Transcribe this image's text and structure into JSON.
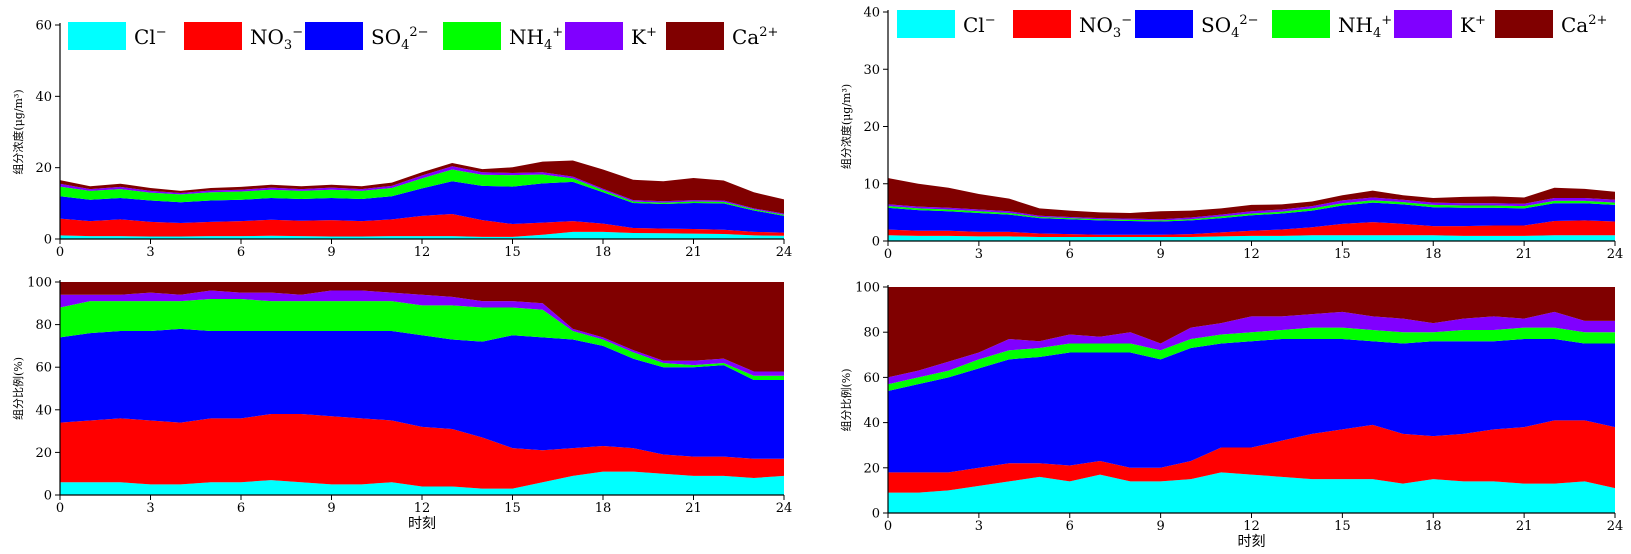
{
  "legend_items": [
    {
      "label": "Cl",
      "sup": "−",
      "sub": "",
      "color": "#00ffff"
    },
    {
      "label": "NO",
      "sub": "3",
      "sup": "−",
      "color": "#ff0000"
    },
    {
      "label": "SO",
      "sub": "4",
      "sup": "2−",
      "color": "#0000ff"
    },
    {
      "label": "NH",
      "sub": "4",
      "sup": "+",
      "color": "#00ff00"
    },
    {
      "label": "K",
      "sub": "",
      "sup": "+",
      "color": "#8000ff"
    },
    {
      "label": "Ca",
      "sub": "",
      "sup": "2+",
      "color": "#800000"
    }
  ],
  "colors": {
    "Cl": "#00ffff",
    "NO3": "#ff0000",
    "SO4": "#0000ff",
    "NH4": "#00ff00",
    "K": "#8000ff",
    "Ca": "#800000"
  },
  "chart_data": [
    {
      "id": "left-concentration",
      "type": "area",
      "stacked": true,
      "ylabel": "组分浓度(μg/m³)",
      "xlabel": "",
      "xlim": [
        0,
        24
      ],
      "ylim": [
        0,
        60
      ],
      "xticks": [
        0,
        3,
        6,
        9,
        12,
        15,
        18,
        21,
        24
      ],
      "yticks": [
        0,
        20,
        40,
        60
      ],
      "legend": "top",
      "x": [
        0,
        1,
        2,
        3,
        4,
        5,
        6,
        7,
        8,
        9,
        10,
        11,
        12,
        13,
        14,
        15,
        16,
        17,
        18,
        19,
        20,
        21,
        22,
        23,
        24
      ],
      "series": [
        {
          "name": "Cl⁻",
          "color": "#00ffff",
          "values": [
            1,
            0.8,
            0.8,
            0.7,
            0.7,
            0.8,
            0.8,
            0.9,
            0.8,
            0.7,
            0.7,
            0.8,
            0.8,
            0.8,
            0.6,
            0.6,
            1.2,
            2.0,
            2.0,
            1.7,
            1.6,
            1.5,
            1.4,
            1.0,
            0.9
          ]
        },
        {
          "name": "NO₃⁻",
          "color": "#ff0000",
          "values": [
            4.7,
            4.2,
            4.7,
            4.1,
            3.8,
            4.0,
            4.2,
            4.5,
            4.3,
            4.6,
            4.3,
            4.7,
            5.7,
            6.2,
            4.7,
            3.6,
            3.4,
            3.0,
            2.3,
            1.4,
            1.3,
            1.3,
            1.2,
            1.0,
            0.9
          ]
        },
        {
          "name": "SO₄²⁻",
          "color": "#0000ff",
          "values": [
            6.3,
            6.0,
            6.0,
            6.0,
            5.8,
            6.0,
            6.0,
            6.1,
            6.1,
            6.2,
            6.2,
            6.5,
            7.7,
            9.2,
            9.6,
            10.5,
            11.0,
            11.0,
            8.8,
            7.0,
            6.9,
            7.3,
            7.4,
            6.0,
            4.7
          ]
        },
        {
          "name": "NH₄⁺",
          "color": "#00ff00",
          "values": [
            2.7,
            2.5,
            2.5,
            2.2,
            2.2,
            2.3,
            2.3,
            2.3,
            2.3,
            2.3,
            2.3,
            2.3,
            2.8,
            3.3,
            3.1,
            3.2,
            2.5,
            1.0,
            0.6,
            0.4,
            0.4,
            0.4,
            0.4,
            0.3,
            0.3
          ]
        },
        {
          "name": "K⁺",
          "color": "#8000ff",
          "values": [
            0.8,
            0.5,
            0.6,
            0.5,
            0.4,
            0.5,
            0.5,
            0.6,
            0.5,
            0.6,
            0.5,
            0.6,
            0.8,
            0.9,
            0.7,
            0.6,
            0.6,
            0.5,
            0.4,
            0.4,
            0.4,
            0.4,
            0.4,
            0.3,
            0.3
          ]
        },
        {
          "name": "Ca²⁺",
          "color": "#800000",
          "values": [
            1.0,
            0.8,
            0.9,
            0.8,
            0.6,
            0.7,
            0.8,
            0.8,
            0.8,
            0.8,
            0.8,
            0.9,
            0.9,
            0.9,
            0.9,
            1.6,
            3.0,
            4.5,
            5.4,
            5.7,
            5.6,
            6.2,
            5.6,
            4.5,
            4.0
          ]
        }
      ]
    },
    {
      "id": "left-proportion",
      "type": "area",
      "stacked": true,
      "ylabel": "组分比例(%)",
      "xlabel": "时刻",
      "xlim": [
        0,
        24
      ],
      "ylim": [
        0,
        100
      ],
      "xticks": [
        0,
        3,
        6,
        9,
        12,
        15,
        18,
        21,
        24
      ],
      "yticks": [
        0,
        20,
        40,
        60,
        80,
        100
      ],
      "x": [
        0,
        1,
        2,
        3,
        4,
        5,
        6,
        7,
        8,
        9,
        10,
        11,
        12,
        13,
        14,
        15,
        16,
        17,
        18,
        19,
        20,
        21,
        22,
        23,
        24
      ],
      "series": [
        {
          "name": "Cl⁻",
          "color": "#00ffff",
          "values": [
            6,
            6,
            6,
            5,
            5,
            6,
            6,
            7,
            6,
            5,
            5,
            6,
            4,
            4,
            3,
            3,
            6,
            9,
            11,
            11,
            10,
            9,
            9,
            8,
            9
          ]
        },
        {
          "name": "NO₃⁻",
          "color": "#ff0000",
          "values": [
            28,
            29,
            30,
            30,
            29,
            30,
            30,
            31,
            32,
            32,
            31,
            29,
            28,
            27,
            24,
            19,
            15,
            13,
            12,
            11,
            9,
            9,
            9,
            9,
            8
          ]
        },
        {
          "name": "SO₄²⁻",
          "color": "#0000ff",
          "values": [
            40,
            41,
            41,
            42,
            44,
            41,
            41,
            39,
            39,
            40,
            41,
            42,
            43,
            42,
            45,
            53,
            53,
            51,
            47,
            42,
            41,
            42,
            43,
            37,
            37
          ]
        },
        {
          "name": "NH₄⁺",
          "color": "#00ff00",
          "values": [
            14,
            15,
            14,
            14,
            13,
            15,
            15,
            14,
            14,
            14,
            14,
            14,
            14,
            16,
            16,
            13,
            13,
            4,
            3,
            3,
            2,
            1,
            1,
            2,
            2
          ]
        },
        {
          "name": "K⁺",
          "color": "#8000ff",
          "values": [
            6,
            3,
            3,
            4,
            3,
            4,
            3,
            4,
            3,
            5,
            5,
            4,
            5,
            4,
            3,
            3,
            3,
            1,
            1,
            1,
            1,
            2,
            2,
            2,
            2
          ]
        },
        {
          "name": "Ca²⁺",
          "color": "#800000",
          "values": [
            6,
            6,
            6,
            5,
            6,
            4,
            5,
            5,
            6,
            4,
            4,
            5,
            6,
            7,
            9,
            11,
            10,
            22,
            26,
            32,
            37,
            37,
            36,
            42,
            42
          ]
        }
      ]
    },
    {
      "id": "right-concentration",
      "type": "area",
      "stacked": true,
      "ylabel": "组分浓度(μg/m³)",
      "xlabel": "",
      "xlim": [
        0,
        24
      ],
      "ylim": [
        0,
        40
      ],
      "xticks": [
        0,
        3,
        6,
        9,
        12,
        15,
        18,
        21,
        24
      ],
      "yticks": [
        0,
        10,
        20,
        30,
        40
      ],
      "legend": "top",
      "x": [
        0,
        1,
        2,
        3,
        4,
        5,
        6,
        7,
        8,
        9,
        10,
        11,
        12,
        13,
        14,
        15,
        16,
        17,
        18,
        19,
        20,
        21,
        22,
        23,
        24
      ],
      "series": [
        {
          "name": "Cl⁻",
          "color": "#00ffff",
          "values": [
            1.0,
            0.9,
            0.9,
            0.8,
            0.8,
            0.7,
            0.7,
            0.7,
            0.7,
            0.7,
            0.7,
            0.8,
            0.9,
            0.9,
            1.0,
            1.0,
            1.0,
            1.0,
            1.0,
            0.9,
            0.9,
            0.9,
            1.0,
            1.0,
            1.0
          ]
        },
        {
          "name": "NO₃⁻",
          "color": "#ff0000",
          "values": [
            1.0,
            0.9,
            0.9,
            0.8,
            0.8,
            0.6,
            0.5,
            0.4,
            0.4,
            0.4,
            0.5,
            0.7,
            0.9,
            1.1,
            1.4,
            2.0,
            2.3,
            2.0,
            1.6,
            1.7,
            1.8,
            1.8,
            2.5,
            2.6,
            2.4
          ]
        },
        {
          "name": "SO₄²⁻",
          "color": "#0000ff",
          "values": [
            3.8,
            3.6,
            3.4,
            3.3,
            3.0,
            2.7,
            2.6,
            2.5,
            2.4,
            2.3,
            2.4,
            2.5,
            2.7,
            2.8,
            2.9,
            3.2,
            3.4,
            3.4,
            3.3,
            3.2,
            3.1,
            3.0,
            3.1,
            3.0,
            2.9
          ]
        },
        {
          "name": "NH₄⁺",
          "color": "#00ff00",
          "values": [
            0.3,
            0.3,
            0.3,
            0.3,
            0.3,
            0.2,
            0.2,
            0.2,
            0.2,
            0.2,
            0.2,
            0.3,
            0.3,
            0.3,
            0.4,
            0.4,
            0.4,
            0.4,
            0.4,
            0.4,
            0.4,
            0.4,
            0.4,
            0.4,
            0.4
          ]
        },
        {
          "name": "K⁺",
          "color": "#8000ff",
          "values": [
            0.3,
            0.3,
            0.3,
            0.3,
            0.3,
            0.2,
            0.2,
            0.2,
            0.2,
            0.2,
            0.3,
            0.3,
            0.4,
            0.4,
            0.4,
            0.5,
            0.5,
            0.4,
            0.4,
            0.4,
            0.4,
            0.4,
            0.5,
            0.5,
            0.5
          ]
        },
        {
          "name": "Ca²⁺",
          "color": "#800000",
          "values": [
            4.6,
            4.0,
            3.5,
            2.7,
            2.2,
            1.3,
            1.1,
            1.0,
            1.0,
            1.4,
            1.2,
            1.1,
            1.1,
            0.9,
            0.8,
            0.9,
            1.2,
            0.8,
            0.8,
            1.1,
            1.2,
            1.1,
            1.8,
            1.6,
            1.4
          ]
        }
      ]
    },
    {
      "id": "right-proportion",
      "type": "area",
      "stacked": true,
      "ylabel": "组分比例(%)",
      "xlabel": "时刻",
      "xlim": [
        0,
        24
      ],
      "ylim": [
        0,
        100
      ],
      "xticks": [
        0,
        3,
        6,
        9,
        12,
        15,
        18,
        21,
        24
      ],
      "yticks": [
        0,
        20,
        40,
        60,
        80,
        100
      ],
      "x": [
        0,
        1,
        2,
        3,
        4,
        5,
        6,
        7,
        8,
        9,
        10,
        11,
        12,
        13,
        14,
        15,
        16,
        17,
        18,
        19,
        20,
        21,
        22,
        23,
        24
      ],
      "series": [
        {
          "name": "Cl⁻",
          "color": "#00ffff",
          "values": [
            9,
            9,
            10,
            12,
            14,
            16,
            14,
            17,
            14,
            14,
            15,
            18,
            17,
            16,
            15,
            15,
            15,
            13,
            15,
            14,
            14,
            13,
            13,
            14,
            11
          ]
        },
        {
          "name": "NO₃⁻",
          "color": "#ff0000",
          "values": [
            9,
            9,
            8,
            8,
            8,
            6,
            7,
            6,
            6,
            6,
            8,
            11,
            12,
            16,
            20,
            22,
            24,
            22,
            19,
            21,
            23,
            25,
            28,
            27,
            27
          ]
        },
        {
          "name": "SO₄²⁻",
          "color": "#0000ff",
          "values": [
            36,
            39,
            42,
            44,
            46,
            47,
            50,
            48,
            51,
            48,
            50,
            46,
            47,
            45,
            42,
            40,
            37,
            40,
            42,
            41,
            39,
            39,
            36,
            34,
            37
          ]
        },
        {
          "name": "NH₄⁺",
          "color": "#00ff00",
          "values": [
            3,
            3,
            3,
            4,
            4,
            4,
            4,
            4,
            4,
            4,
            4,
            4,
            4,
            4,
            5,
            5,
            5,
            5,
            4,
            5,
            5,
            5,
            5,
            5,
            5
          ]
        },
        {
          "name": "K⁺",
          "color": "#8000ff",
          "values": [
            3,
            3,
            4,
            3,
            5,
            3,
            4,
            3,
            5,
            3,
            5,
            5,
            7,
            6,
            6,
            7,
            6,
            6,
            4,
            5,
            6,
            4,
            7,
            5,
            5
          ]
        },
        {
          "name": "Ca²⁺",
          "color": "#800000",
          "values": [
            40,
            37,
            33,
            29,
            23,
            24,
            21,
            22,
            20,
            25,
            18,
            16,
            13,
            13,
            12,
            11,
            13,
            14,
            16,
            15,
            13,
            14,
            11,
            15,
            15
          ]
        }
      ]
    }
  ]
}
